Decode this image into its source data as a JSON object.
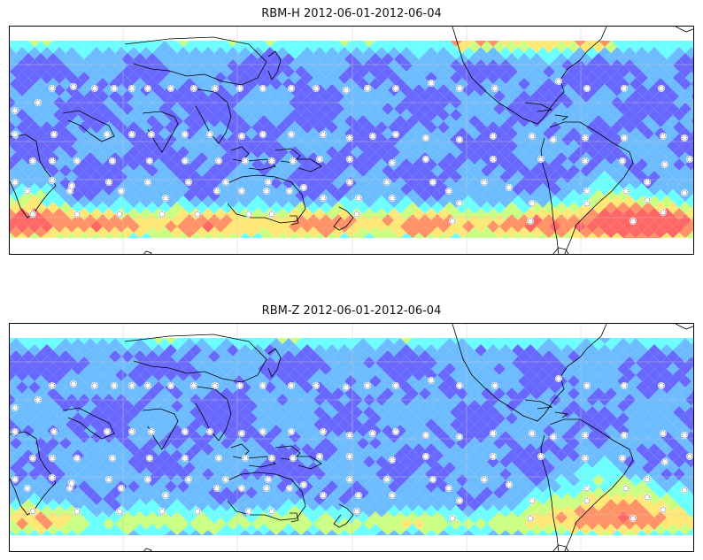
{
  "panels": [
    {
      "title": "RBM-H 2012-06-01-2012-06-04",
      "variant": "H"
    },
    {
      "title": "RBM-Z 2012-06-01-2012-06-04",
      "variant": "Z"
    }
  ],
  "colormap": "jet",
  "colormap_stops": [
    "#5b5bff",
    "#5fb6ff",
    "#60ffff",
    "#c6ff7a",
    "#ffe66a",
    "#ff8a5a",
    "#ff5a5a"
  ],
  "gridlines": true,
  "coastlines": true,
  "station_markers": "white-dotted-rings"
}
